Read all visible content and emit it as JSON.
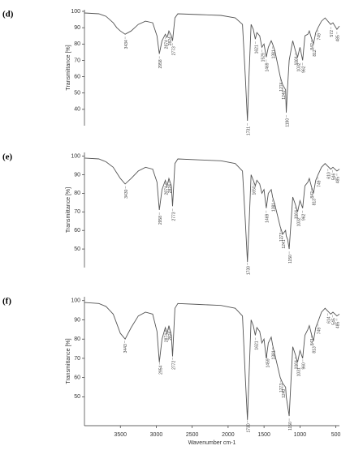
{
  "chart_data": [
    {
      "type": "line",
      "panel_label": "(d)",
      "ylabel": "Transmittance [%]",
      "color": "#555555",
      "xlim": [
        4000,
        450
      ],
      "ylim": [
        30,
        101
      ],
      "yticks": [
        40,
        50,
        60,
        70,
        80,
        90,
        100
      ],
      "x": [
        4000,
        3800,
        3700,
        3600,
        3550,
        3500,
        3434,
        3350,
        3250,
        3150,
        3050,
        2990,
        2958,
        2920,
        2874,
        2850,
        2824,
        2790,
        2773,
        2740,
        2700,
        2400,
        2100,
        1900,
        1800,
        1760,
        1731,
        1710,
        1680,
        1650,
        1621,
        1600,
        1560,
        1530,
        1500,
        1469,
        1440,
        1400,
        1381,
        1350,
        1274,
        1240,
        1200,
        1190,
        1170,
        1150,
        1100,
        1064,
        1032,
        1000,
        962,
        930,
        890,
        870,
        842,
        812,
        780,
        749,
        700,
        650,
        572,
        540,
        485,
        450
      ],
      "values": [
        99,
        98.5,
        97,
        93,
        90,
        88,
        86,
        88,
        92,
        94,
        93,
        85,
        74,
        82,
        86,
        84,
        88,
        85,
        82,
        96,
        98.5,
        98,
        97.5,
        96,
        92,
        60,
        33,
        60,
        92,
        89,
        83,
        87,
        85,
        78,
        80,
        72,
        78,
        82,
        80,
        76,
        60,
        55,
        52,
        38,
        55,
        70,
        82,
        76,
        72,
        78,
        70,
        85,
        86,
        88,
        84,
        80,
        87,
        90,
        94,
        96,
        92,
        93,
        89,
        91
      ],
      "peaks": [
        3434,
        2958,
        2874,
        2824,
        2773,
        1731,
        1621,
        1529,
        1469,
        1381,
        1274,
        1240,
        1190,
        1064,
        1032,
        962,
        842,
        812,
        749,
        572,
        485
      ]
    },
    {
      "type": "line",
      "panel_label": "(e)",
      "ylabel": "Transmittance [%]",
      "color": "#555555",
      "xlim": [
        4000,
        450
      ],
      "ylim": [
        40,
        102
      ],
      "yticks": [
        50,
        60,
        70,
        80,
        90,
        100
      ],
      "x": [
        4000,
        3800,
        3700,
        3600,
        3550,
        3500,
        3434,
        3350,
        3250,
        3150,
        3050,
        2990,
        2958,
        2920,
        2874,
        2850,
        2824,
        2790,
        2773,
        2740,
        2700,
        2400,
        2100,
        1900,
        1800,
        1760,
        1731,
        1710,
        1680,
        1650,
        1621,
        1600,
        1560,
        1530,
        1500,
        1469,
        1440,
        1400,
        1381,
        1350,
        1274,
        1240,
        1200,
        1190,
        1170,
        1150,
        1100,
        1064,
        1032,
        1000,
        962,
        930,
        890,
        870,
        842,
        812,
        780,
        749,
        700,
        650,
        572,
        540,
        485,
        450
      ],
      "values": [
        99,
        98.5,
        97,
        94,
        91,
        88,
        85,
        88,
        92,
        94,
        93,
        86,
        71,
        82,
        87,
        84,
        88,
        84,
        73,
        96,
        98.5,
        98,
        97.5,
        96,
        92,
        65,
        43,
        62,
        90,
        87,
        84,
        87,
        85,
        80,
        82,
        72,
        80,
        82,
        78,
        74,
        62,
        58,
        60,
        57,
        55,
        50,
        78,
        74,
        70,
        76,
        72,
        84,
        86,
        88,
        84,
        80,
        87,
        90,
        94,
        96,
        93,
        94,
        92,
        93
      ],
      "peaks": [
        3430,
        2958,
        2874,
        2824,
        2773,
        1730,
        1650,
        1469,
        1381,
        1273,
        1241,
        1150,
        1064,
        1032,
        962,
        842,
        813,
        749,
        610,
        546,
        485
      ]
    },
    {
      "type": "line",
      "panel_label": "(f)",
      "ylabel": "Transmittance [%]",
      "xlabel": "Wavenumber cm-1",
      "color": "#555555",
      "xlim": [
        4000,
        450
      ],
      "ylim": [
        35,
        102
      ],
      "yticks": [
        50,
        60,
        70,
        80,
        90,
        100
      ],
      "xticks": [
        3500,
        3000,
        2500,
        2000,
        1500,
        1000,
        500
      ],
      "x": [
        4000,
        3800,
        3700,
        3600,
        3550,
        3500,
        3434,
        3350,
        3250,
        3150,
        3050,
        2990,
        2958,
        2920,
        2874,
        2850,
        2824,
        2790,
        2773,
        2740,
        2700,
        2400,
        2100,
        1900,
        1800,
        1760,
        1731,
        1710,
        1680,
        1650,
        1621,
        1600,
        1560,
        1530,
        1500,
        1469,
        1440,
        1400,
        1381,
        1350,
        1274,
        1240,
        1200,
        1190,
        1170,
        1150,
        1100,
        1064,
        1032,
        1000,
        962,
        930,
        890,
        870,
        842,
        812,
        780,
        749,
        700,
        650,
        572,
        540,
        485,
        450
      ],
      "values": [
        99,
        98.5,
        97,
        93,
        88,
        83,
        80,
        86,
        92,
        94,
        93,
        84,
        68,
        80,
        86,
        83,
        87,
        82,
        71,
        96,
        98.5,
        98,
        97.5,
        96,
        92,
        60,
        38,
        60,
        90,
        87,
        82,
        86,
        84,
        78,
        80,
        70,
        78,
        81,
        77,
        72,
        60,
        57,
        55,
        50,
        45,
        40,
        76,
        72,
        68,
        74,
        70,
        82,
        85,
        87,
        83,
        79,
        86,
        89,
        94,
        96,
        93,
        94,
        92,
        93
      ],
      "peaks": [
        3443,
        2954,
        2874,
        2824,
        2772,
        1730,
        1621,
        1459,
        1381,
        1273,
        1240,
        1150,
        1064,
        1031,
        960,
        843,
        813,
        749,
        614,
        545,
        485
      ]
    }
  ]
}
